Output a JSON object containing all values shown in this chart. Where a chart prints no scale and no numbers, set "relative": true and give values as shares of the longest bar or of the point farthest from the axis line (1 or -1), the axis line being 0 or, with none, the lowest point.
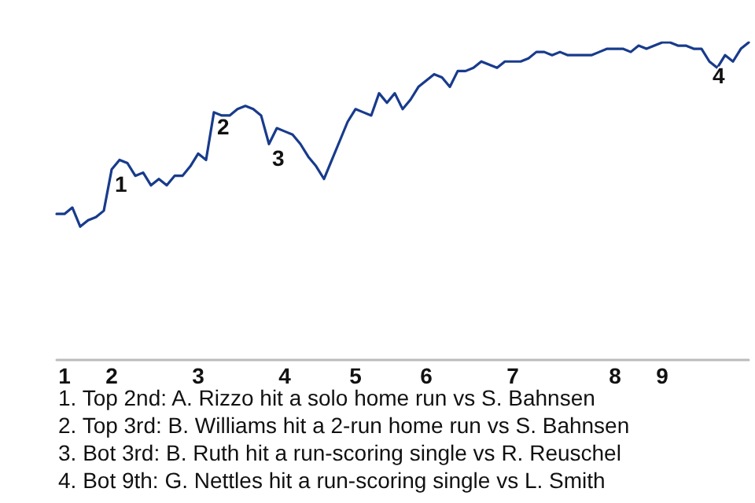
{
  "chart_data": {
    "type": "line",
    "relative": true,
    "categories": [
      null,
      "1",
      null,
      null,
      null,
      null,
      null,
      "2",
      null,
      null,
      null,
      null,
      null,
      null,
      null,
      null,
      null,
      null,
      "3",
      null,
      null,
      null,
      null,
      null,
      null,
      null,
      null,
      null,
      null,
      "4",
      null,
      null,
      null,
      null,
      null,
      null,
      null,
      null,
      "5",
      null,
      null,
      null,
      null,
      null,
      null,
      null,
      null,
      "6",
      null,
      null,
      null,
      null,
      null,
      null,
      null,
      null,
      null,
      null,
      "7",
      null,
      null,
      null,
      null,
      null,
      null,
      null,
      null,
      null,
      null,
      null,
      null,
      "8",
      null,
      null,
      null,
      null,
      null,
      "9",
      null,
      null,
      null,
      null,
      null,
      null,
      null,
      null,
      null,
      null,
      null
    ],
    "series": [
      {
        "color": "#183b8c",
        "values": [
          0.46,
          0.46,
          0.48,
          0.42,
          0.44,
          0.45,
          0.47,
          0.6,
          0.63,
          0.62,
          0.58,
          0.59,
          0.55,
          0.57,
          0.55,
          0.58,
          0.58,
          0.61,
          0.65,
          0.63,
          0.78,
          0.77,
          0.77,
          0.79,
          0.8,
          0.79,
          0.77,
          0.68,
          0.73,
          0.72,
          0.71,
          0.68,
          0.64,
          0.61,
          0.57,
          0.63,
          0.69,
          0.75,
          0.79,
          0.78,
          0.77,
          0.84,
          0.81,
          0.84,
          0.79,
          0.82,
          0.86,
          0.88,
          0.9,
          0.89,
          0.86,
          0.91,
          0.91,
          0.92,
          0.94,
          0.93,
          0.92,
          0.94,
          0.94,
          0.94,
          0.95,
          0.97,
          0.97,
          0.96,
          0.97,
          0.96,
          0.96,
          0.96,
          0.96,
          0.97,
          0.98,
          0.98,
          0.98,
          0.97,
          0.99,
          0.98,
          0.99,
          1,
          1,
          0.99,
          0.99,
          0.98,
          0.98,
          0.94,
          0.92,
          0.96,
          0.94,
          0.98,
          1
        ]
      }
    ],
    "annotations": [
      {
        "text": "1",
        "y": 0.6
      },
      {
        "text": "2",
        "y": 0.78
      },
      {
        "text": "3",
        "y": 0.68
      },
      {
        "text": "4",
        "y": 0.94
      },
      "1. Top 2nd: A. Rizzo hit a solo home run vs S. Bahnsen",
      "2. Top 3rd: B. Williams hit a 2-run home run vs S. Bahnsen",
      "3. Bot 3rd: B. Ruth hit a run-scoring single vs R. Reuschel",
      "4. Bot 9th: G. Nettles hit a run-scoring single vs L. Smith"
    ],
    "marker": "none",
    "line_style": "solid"
  }
}
